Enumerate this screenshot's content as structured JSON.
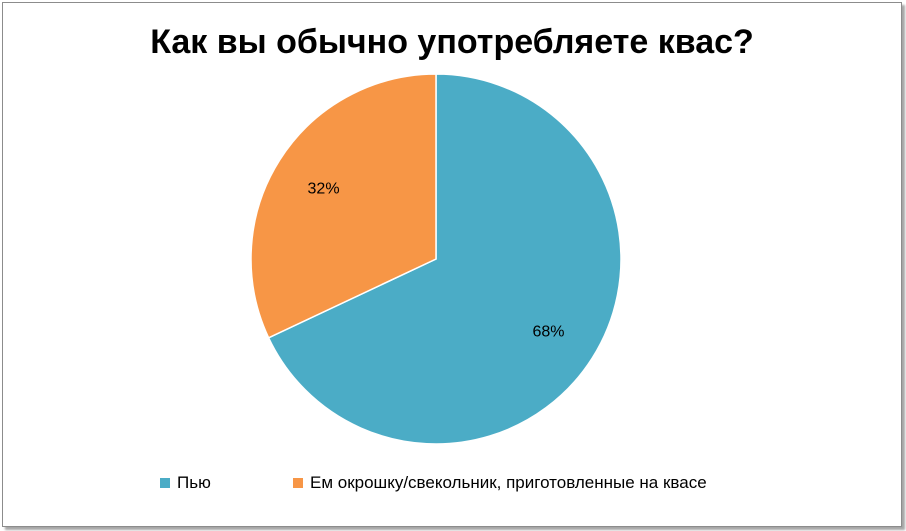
{
  "chart_data": {
    "type": "pie",
    "title": "Как вы обычно употребляете квас?",
    "slices": [
      {
        "label": "Пью",
        "value": 68,
        "display": "68%",
        "color": "#4bacc6"
      },
      {
        "label": "Ем окрошку/свекольник, приготовленные на квасе",
        "value": 32,
        "display": "32%",
        "color": "#f79646"
      }
    ],
    "legend_position": "bottom"
  }
}
